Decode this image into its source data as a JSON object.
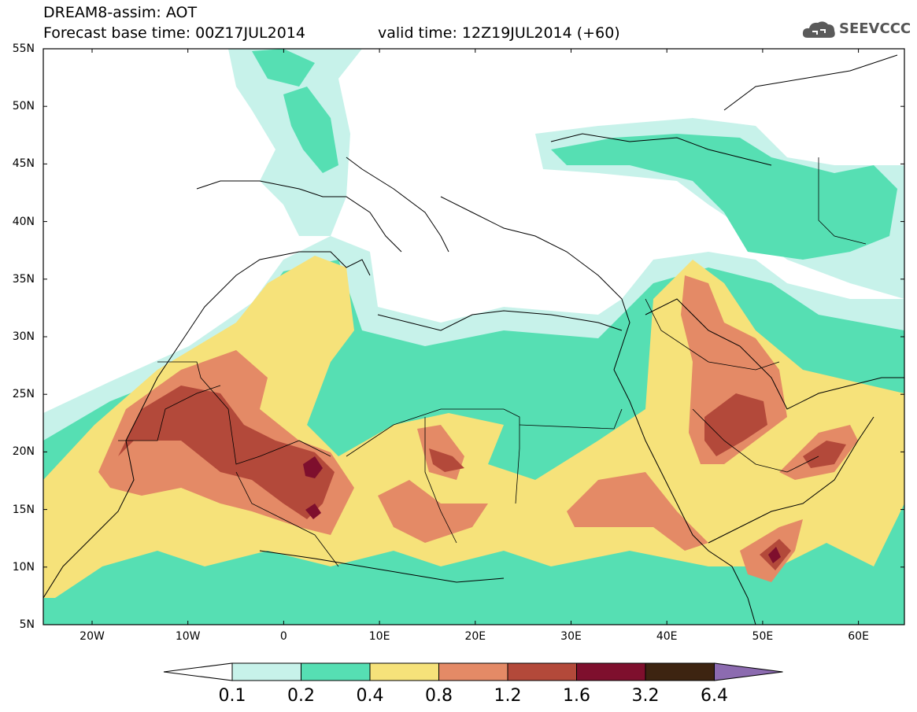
{
  "header": {
    "title_line1": "DREAM8-assim: AOT",
    "title_line2": "Forecast base time: 00Z17JUL2014",
    "valid_time": "valid time: 12Z19JUL2014 (+60)",
    "logo_text": "SEEVCCC"
  },
  "map": {
    "lat_labels": [
      "55N",
      "50N",
      "45N",
      "40N",
      "35N",
      "30N",
      "25N",
      "20N",
      "15N",
      "10N",
      "5N"
    ],
    "lon_labels": [
      "20W",
      "10W",
      "0",
      "10E",
      "20E",
      "30E",
      "40E",
      "50E",
      "60E"
    ]
  },
  "colorbar": {
    "labels": [
      "0.1",
      "0.2",
      "0.4",
      "0.8",
      "1.2",
      "1.6",
      "3.2",
      "6.4"
    ],
    "colors": [
      "#c7f2ea",
      "#56dfb3",
      "#f6e27a",
      "#e48a66",
      "#b3493a",
      "#7e0f2d",
      "#3d2411",
      "#8c6bb0"
    ]
  }
}
